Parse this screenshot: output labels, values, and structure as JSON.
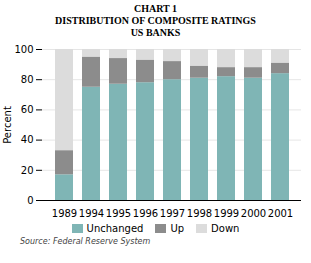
{
  "chart_data": {
    "type": "bar",
    "stacked": true,
    "title": [
      "CHART 1",
      "DISTRIBUTION OF COMPOSITE RATINGS",
      "US BANKS"
    ],
    "ylabel": "Percent",
    "categories": [
      "1989",
      "1994",
      "1995",
      "1996",
      "1997",
      "1998",
      "1999",
      "2000",
      "2001"
    ],
    "series": [
      {
        "name": "Unchanged",
        "color": "#7fb5b5",
        "values": [
          17,
          75,
          77,
          78,
          80,
          81,
          82,
          81,
          84
        ]
      },
      {
        "name": "Up",
        "color": "#8c8c8c",
        "values": [
          16,
          20,
          17,
          15,
          12,
          8,
          6,
          7,
          7
        ]
      },
      {
        "name": "Down",
        "color": "#dcdcdc",
        "values": [
          67,
          5,
          6,
          7,
          8,
          11,
          12,
          12,
          9
        ]
      }
    ],
    "ylim": [
      0,
      100
    ],
    "yticks": [
      0,
      20,
      40,
      60,
      80,
      100
    ],
    "grid": true,
    "legend": "bottom",
    "annotations": [
      "Source: Federal Reserve System"
    ]
  }
}
